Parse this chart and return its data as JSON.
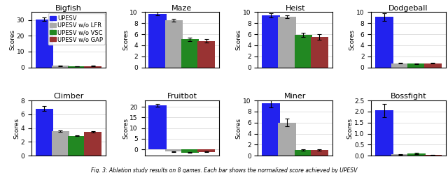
{
  "subplots": [
    {
      "title": "Bigfish",
      "values": [
        30.5,
        1.0,
        0.7,
        0.8
      ],
      "errors": [
        1.2,
        0.15,
        0.1,
        0.15
      ],
      "ylim": [
        0,
        35
      ],
      "yticks": [
        0,
        10,
        20,
        30
      ]
    },
    {
      "title": "Maze",
      "values": [
        9.7,
        8.5,
        5.1,
        4.8
      ],
      "errors": [
        0.3,
        0.25,
        0.3,
        0.35
      ],
      "ylim": [
        0,
        10
      ],
      "yticks": [
        0,
        2,
        4,
        6,
        8,
        10
      ]
    },
    {
      "title": "Heist",
      "values": [
        9.4,
        9.2,
        5.9,
        5.5
      ],
      "errors": [
        0.35,
        0.25,
        0.35,
        0.5
      ],
      "ylim": [
        0,
        10
      ],
      "yticks": [
        0,
        2,
        4,
        6,
        8,
        10
      ]
    },
    {
      "title": "Dodgeball",
      "values": [
        9.1,
        0.75,
        0.65,
        0.75
      ],
      "errors": [
        0.7,
        0.1,
        0.08,
        0.1
      ],
      "ylim": [
        0,
        10
      ],
      "yticks": [
        0,
        2,
        4,
        6,
        8,
        10
      ]
    },
    {
      "title": "Climber",
      "values": [
        6.8,
        3.6,
        2.9,
        3.45
      ],
      "errors": [
        0.35,
        0.1,
        0.1,
        0.1
      ],
      "ylim": [
        0,
        8
      ],
      "yticks": [
        0,
        2,
        4,
        6,
        8
      ]
    },
    {
      "title": "Fruitbot",
      "values": [
        20.7,
        -1.1,
        -1.5,
        -1.2
      ],
      "errors": [
        0.6,
        0.2,
        0.2,
        0.2
      ],
      "ylim": [
        -3,
        23
      ],
      "yticks": [
        0,
        5,
        10,
        15,
        20
      ]
    },
    {
      "title": "Miner",
      "values": [
        9.5,
        6.0,
        1.0,
        1.0
      ],
      "errors": [
        0.7,
        0.7,
        0.1,
        0.1
      ],
      "ylim": [
        0,
        10
      ],
      "yticks": [
        0,
        2,
        4,
        6,
        8,
        10
      ]
    },
    {
      "title": "Bossfight",
      "values": [
        2.05,
        0.06,
        0.1,
        0.04
      ],
      "errors": [
        0.3,
        0.02,
        0.03,
        0.01
      ],
      "ylim": [
        0.0,
        2.5
      ],
      "yticks": [
        0.0,
        0.5,
        1.0,
        1.5,
        2.0,
        2.5
      ]
    }
  ],
  "bar_colors": [
    "#2222ee",
    "#aaaaaa",
    "#228822",
    "#993333"
  ],
  "legend_labels": [
    "UPESV",
    "UPESV w/o LFR",
    "UPESV w/o VSC",
    "UPESV w/o GAP"
  ],
  "ylabel": "Scores",
  "title_fontsize": 8,
  "tick_fontsize": 6.5,
  "legend_fontsize": 6,
  "bar_width": 0.55,
  "figsize": [
    6.4,
    2.48
  ],
  "dpi": 100,
  "caption": "Fig. 3: Ablation study results on 8 games. Each bar shows the normalized score achieved by UPESV"
}
